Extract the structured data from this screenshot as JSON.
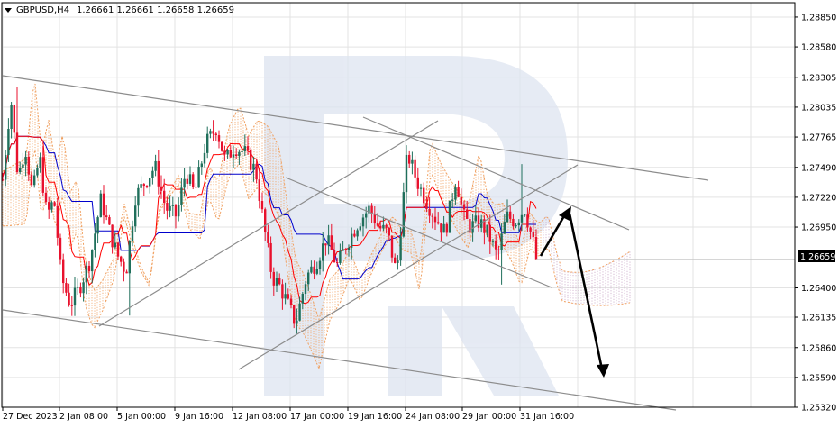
{
  "header": {
    "symbol": "GBPUSD,H4",
    "ohlc": "1.26661 1.26661 1.26658 1.26659"
  },
  "chart_data": {
    "type": "candlestick",
    "symbol": "GBPUSD",
    "timeframe": "H4",
    "last_price_label": "1.26659",
    "last_price": 1.26659,
    "ylim": [
      1.2532,
      1.2898
    ],
    "y_ticks": [
      {
        "value": 1.2885,
        "label": "1.28850"
      },
      {
        "value": 1.2858,
        "label": "1.28580"
      },
      {
        "value": 1.28305,
        "label": "1.28305"
      },
      {
        "value": 1.28035,
        "label": "1.28035"
      },
      {
        "value": 1.27765,
        "label": "1.27765"
      },
      {
        "value": 1.2749,
        "label": "1.27490"
      },
      {
        "value": 1.2722,
        "label": "1.27220"
      },
      {
        "value": 1.2695,
        "label": "1.26950"
      },
      {
        "value": 1.264,
        "label": "1.26400"
      },
      {
        "value": 1.26135,
        "label": "1.26135"
      },
      {
        "value": 1.2586,
        "label": "1.25860"
      },
      {
        "value": 1.2559,
        "label": "1.25590"
      },
      {
        "value": 1.2532,
        "label": "1.25320"
      }
    ],
    "x_ticks": [
      "27 Dec 2023",
      "2 Jan 08:00",
      "5 Jan 00:00",
      "9 Jan 16:00",
      "12 Jan 08:00",
      "17 Jan 00:00",
      "19 Jan 16:00",
      "24 Jan 08:00",
      "29 Jan 00:00",
      "31 Jan 16:00"
    ],
    "grid": true,
    "colors": {
      "bull": "#1f6f5b",
      "bear": "#e8112d",
      "tenkan": "#ff0000",
      "kijun": "#0000cc",
      "cloud": "#f0a060",
      "trendline": "#8c8c8c",
      "arrow": "#000000",
      "watermark": "#dde4f0"
    }
  }
}
